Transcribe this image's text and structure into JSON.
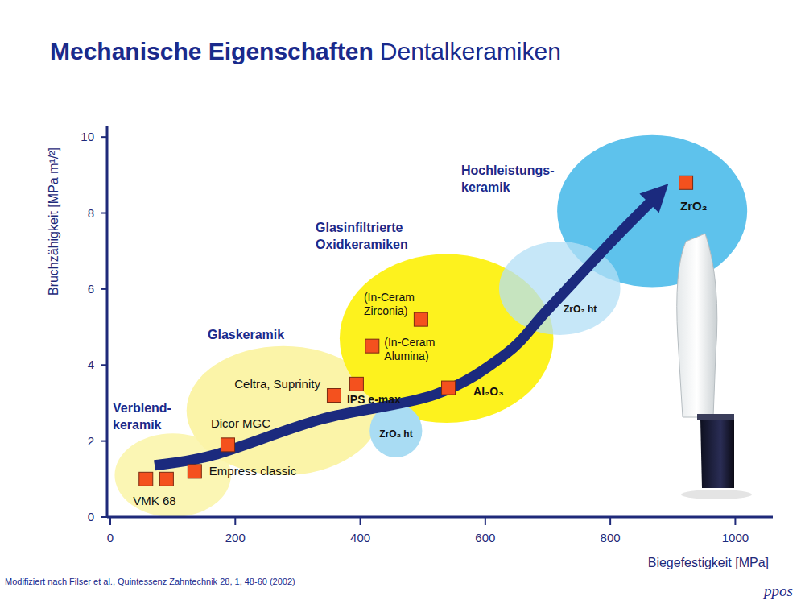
{
  "chart_data": {
    "type": "scatter",
    "title": "Mechanische Eigenschaften",
    "subtitle": "Dentalkeramiken",
    "x_label": "Biegefestigkeit [MPa]",
    "y_label": "Bruchzähigkeit [MPa m¹/²]",
    "source": "Modifiziert nach Filser et al., Quintessenz Zahntechnik 28, 1, 48-60 (2002)",
    "logo": "ppos",
    "xlim": [
      0,
      1060
    ],
    "ylim": [
      0,
      10.3
    ],
    "xticks": [
      0,
      200,
      400,
      600,
      800,
      1000
    ],
    "yticks": [
      0,
      2,
      4,
      6,
      8,
      10
    ],
    "grid": false,
    "marker": "square",
    "color": "#f4511e",
    "x": [
      57,
      90,
      135,
      188,
      358,
      394,
      419,
      497,
      541,
      921
    ],
    "values": [
      1.0,
      1.0,
      1.2,
      1.9,
      3.2,
      3.5,
      4.5,
      5.2,
      3.4,
      8.8
    ],
    "point_labels": [
      "VMK 68",
      null,
      "Empress classic",
      "Dicor MGC",
      "Celtra, Suprinity",
      "IPS e-max",
      "(In-Ceram\nAlumina)",
      "(In-Ceram\nZirconia)",
      "Al₂O₃",
      "ZrO₂"
    ],
    "regions": [
      {
        "label": "Verblend-\nkeramik",
        "x": 100,
        "y": 1.1,
        "rx": 93,
        "ry": 1.1,
        "color": "#fbf6b4"
      },
      {
        "label": "Glaskeramik",
        "x": 277,
        "y": 2.8,
        "rx": 155,
        "ry": 1.7,
        "color": "#fbf4a8"
      },
      {
        "label": "Glasinfiltrierte\nOxidkeramiken",
        "x": 538,
        "y": 4.7,
        "rx": 171,
        "ry": 2.22,
        "color": "#fdf21e"
      },
      {
        "label": "ZrO₂ ht",
        "x": 457,
        "y": 2.27,
        "rx": 42,
        "ry": 0.7,
        "color": "#a9dcf3"
      },
      {
        "label": "Hochleistungs-\nkeramik",
        "x": 867,
        "y": 8.05,
        "rx": 152,
        "ry": 2.0,
        "color": "#5ec2ec"
      },
      {
        "label": "ZrO₂ ht",
        "x": 719,
        "y": 6.02,
        "rx": 97,
        "ry": 1.23,
        "color": "#b3dff5"
      }
    ],
    "trend": {
      "x": [
        71,
        165,
        339,
        519,
        632,
        699,
        802,
        893
      ],
      "y": [
        1.36,
        1.63,
        2.58,
        3.22,
        4.28,
        5.44,
        7.25,
        8.77
      ],
      "color": "#1b2a7e"
    }
  }
}
